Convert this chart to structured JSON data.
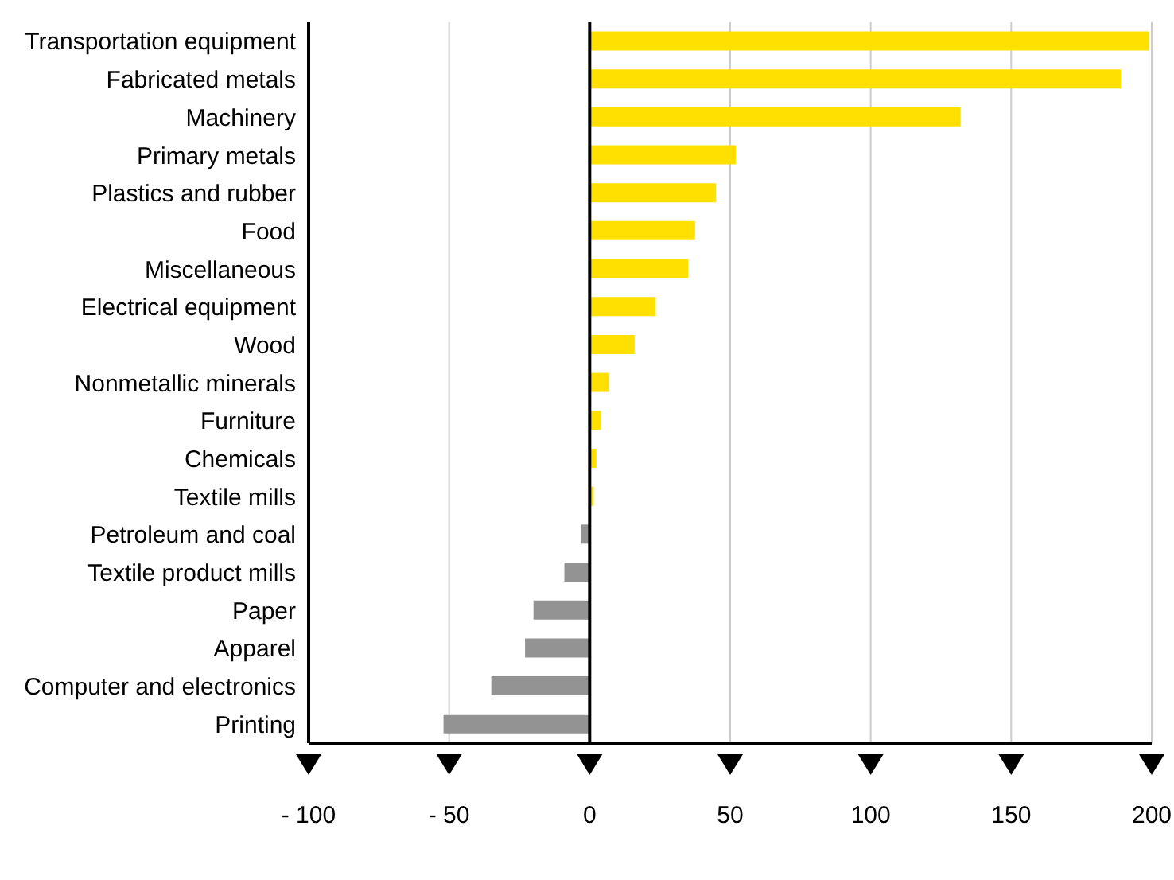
{
  "chart_data": {
    "type": "bar",
    "orientation": "horizontal",
    "categories": [
      "Transportation equipment",
      "Fabricated metals",
      "Machinery",
      "Primary metals",
      "Plastics and rubber",
      "Food",
      "Miscellaneous",
      "Electrical equipment",
      "Wood",
      "Nonmetallic minerals",
      "Furniture",
      "Chemicals",
      "Textile mills",
      "Petroleum and coal",
      "Textile product mills",
      "Paper",
      "Apparel",
      "Computer and electronics",
      "Printing"
    ],
    "values": [
      199,
      189,
      132,
      52,
      45,
      37.5,
      35,
      23.5,
      16,
      7,
      4,
      2.4,
      1.4,
      -3,
      -9,
      -20,
      -23,
      -35,
      -52
    ],
    "colors": [
      "#ffe000",
      "#ffe000",
      "#ffe000",
      "#ffe000",
      "#ffe000",
      "#ffe000",
      "#ffe000",
      "#ffe000",
      "#ffe000",
      "#ffe000",
      "#ffe000",
      "#ffe000",
      "#ffe000",
      "#939393",
      "#939393",
      "#939393",
      "#939393",
      "#939393",
      "#939393"
    ],
    "xlim": [
      -100,
      200
    ],
    "xticks": [
      {
        "value": -100,
        "label": "- 100"
      },
      {
        "value": -50,
        "label": "- 50"
      },
      0,
      50,
      100,
      150,
      200
    ],
    "grid": "x",
    "legend": false
  }
}
